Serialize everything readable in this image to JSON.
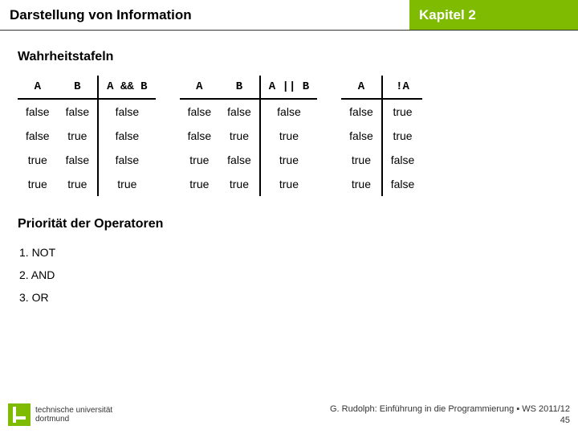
{
  "header": {
    "title": "Darstellung von Information",
    "chapter": "Kapitel 2"
  },
  "truth": {
    "title": "Wahrheitstafeln",
    "tableAnd": {
      "head": {
        "a": "A",
        "b": "B",
        "r": "A && B"
      },
      "rows": [
        {
          "a": "false",
          "b": "false",
          "r": "false"
        },
        {
          "a": "false",
          "b": "true",
          "r": "false"
        },
        {
          "a": "true",
          "b": "false",
          "r": "false"
        },
        {
          "a": "true",
          "b": "true",
          "r": "true"
        }
      ]
    },
    "tableOr": {
      "head": {
        "a": "A",
        "b": "B",
        "r": "A || B"
      },
      "rows": [
        {
          "a": "false",
          "b": "false",
          "r": "false"
        },
        {
          "a": "false",
          "b": "true",
          "r": "true"
        },
        {
          "a": "true",
          "b": "false",
          "r": "true"
        },
        {
          "a": "true",
          "b": "true",
          "r": "true"
        }
      ]
    },
    "tableNot": {
      "head": {
        "a": "A",
        "r": "!A"
      },
      "rows": [
        {
          "a": "false",
          "r": "true"
        },
        {
          "a": "false",
          "r": "true"
        },
        {
          "a": "true",
          "r": "false"
        },
        {
          "a": "true",
          "r": "false"
        }
      ]
    }
  },
  "priority": {
    "title": "Priorität der Operatoren",
    "items": {
      "p1": "1.  NOT",
      "p2": "2.  AND",
      "p3": "3.  OR"
    }
  },
  "footer": {
    "uni1": "technische universität",
    "uni2": "dortmund",
    "credit": "G. Rudolph: Einführung in die Programmierung ▪ WS 2011/12",
    "slide": "45"
  }
}
